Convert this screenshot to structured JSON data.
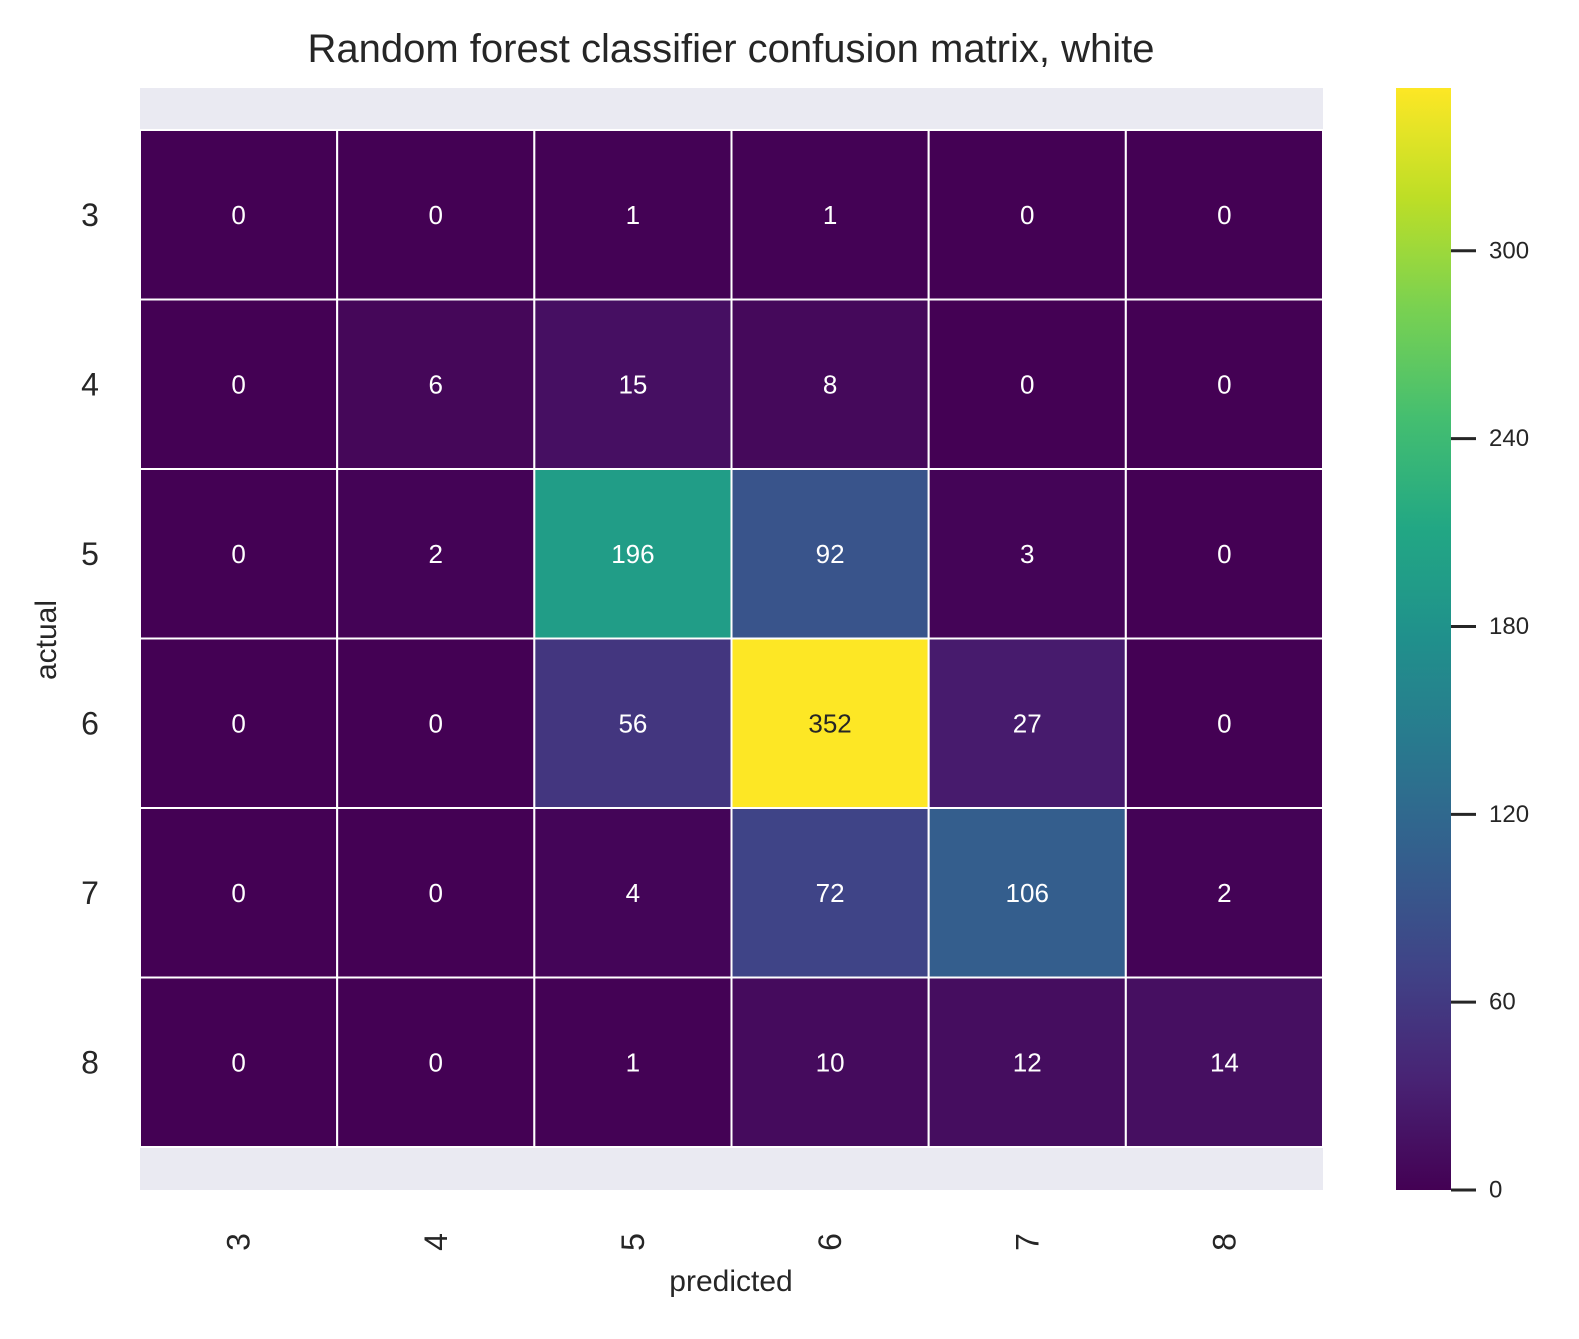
{
  "chart_data": {
    "type": "heatmap",
    "title": "Random forest classifier confusion matrix, white",
    "xlabel": "predicted",
    "ylabel": "actual",
    "x_categories": [
      "3",
      "4",
      "5",
      "6",
      "7",
      "8"
    ],
    "y_categories": [
      "3",
      "4",
      "5",
      "6",
      "7",
      "8"
    ],
    "values": [
      [
        0,
        0,
        1,
        1,
        0,
        0
      ],
      [
        0,
        6,
        15,
        8,
        0,
        0
      ],
      [
        0,
        2,
        196,
        92,
        3,
        0
      ],
      [
        0,
        0,
        56,
        352,
        27,
        0
      ],
      [
        0,
        0,
        4,
        72,
        106,
        2
      ],
      [
        0,
        0,
        1,
        10,
        12,
        14
      ]
    ],
    "colormap": "viridis",
    "annotations": true,
    "colorbar": {
      "range": [
        0,
        352
      ],
      "ticks": [
        0,
        60,
        120,
        180,
        240,
        300
      ]
    },
    "colors": {
      "axes_background": "#eaeaf2",
      "grid_lines": "#ffffff",
      "text": "#262626",
      "annotation_light": "#ffffff",
      "annotation_dark": "#262626"
    }
  }
}
